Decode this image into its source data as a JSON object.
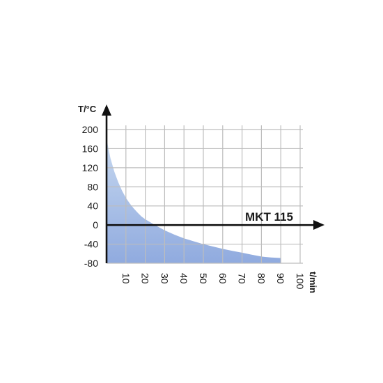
{
  "chart_data": {
    "type": "area",
    "title": "",
    "ylabel": "T/°C",
    "xlabel": "t/min",
    "series_label": "MKT 115",
    "xlim": [
      0,
      100
    ],
    "ylim": [
      -80,
      200
    ],
    "x_ticks": [
      10,
      20,
      30,
      40,
      50,
      60,
      70,
      80,
      90,
      100
    ],
    "y_ticks": [
      200,
      160,
      120,
      80,
      40,
      0,
      -40,
      -80
    ],
    "grid": true,
    "series": [
      {
        "x": [
          0,
          2,
          4,
          6,
          8,
          10,
          12,
          14,
          16,
          18,
          20,
          25,
          30,
          35,
          40,
          45,
          50,
          55,
          60,
          65,
          70,
          75,
          80,
          85,
          90
        ],
        "y": [
          180,
          140,
          112,
          90,
          72,
          57,
          45,
          35,
          26,
          18,
          12,
          0,
          -11,
          -20,
          -28,
          -34,
          -40,
          -45,
          -50,
          -54,
          -58,
          -62,
          -66,
          -68,
          -69
        ]
      }
    ],
    "colors": {
      "fill_top": "#c3d6ef",
      "fill_bottom": "#8aa6dd",
      "grid": "#bdbdbd",
      "axis": "#111111"
    }
  }
}
